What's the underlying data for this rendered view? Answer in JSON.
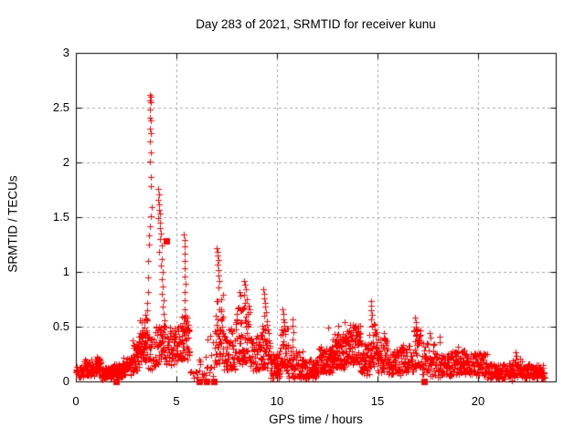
{
  "window": {
    "background": "#ffffff"
  },
  "chart_data": {
    "type": "scatter",
    "title": "Day 283 of 2021, SRMTID for receiver kunu",
    "xlabel": "GPS time / hours",
    "ylabel": "SRMTID / TECUs",
    "xlim": [
      0,
      23.86
    ],
    "ylim": [
      0,
      3
    ],
    "x_ticks": [
      0,
      5,
      10,
      15,
      20
    ],
    "x_tick_labels": [
      "0",
      "5",
      "10",
      "15",
      "20"
    ],
    "y_ticks": [
      0,
      0.5,
      1,
      1.5,
      2,
      2.5,
      3
    ],
    "y_tick_labels": [
      "0",
      "0.5",
      "1",
      "1.5",
      "2",
      "2.5",
      "3"
    ],
    "grid": true,
    "grid_style": "dashed",
    "legend": null,
    "colors": {
      "marker": "#ff0000",
      "grid": "#a8a8a8",
      "axis": "#000000",
      "text": "#000000"
    },
    "series": [
      {
        "name": "plus_markers",
        "marker": "plus",
        "color": "#ff0000",
        "points": [
          [
            3.68,
            2.62
          ],
          [
            3.71,
            2.6
          ],
          [
            3.69,
            2.57
          ],
          [
            3.72,
            2.55
          ],
          [
            3.7,
            2.48
          ],
          [
            3.69,
            2.41
          ],
          [
            3.72,
            2.38
          ],
          [
            3.7,
            2.31
          ],
          [
            3.72,
            2.27
          ],
          [
            3.69,
            2.19
          ],
          [
            3.71,
            2.09
          ],
          [
            3.7,
            2.01
          ],
          [
            3.73,
            1.87
          ],
          [
            3.71,
            1.78
          ],
          [
            3.75,
            1.59
          ],
          [
            3.73,
            1.51
          ],
          [
            3.67,
            1.42
          ],
          [
            3.65,
            1.33
          ],
          [
            3.63,
            1.25
          ],
          [
            3.61,
            1.1
          ],
          [
            3.59,
            0.95
          ],
          [
            3.57,
            0.82
          ],
          [
            3.55,
            0.72
          ],
          [
            3.53,
            0.65
          ],
          [
            4.08,
            1.76
          ],
          [
            4.12,
            1.71
          ],
          [
            4.1,
            1.66
          ],
          [
            4.15,
            1.62
          ],
          [
            4.13,
            1.57
          ],
          [
            4.18,
            1.53
          ],
          [
            4.11,
            1.49
          ],
          [
            4.2,
            1.45
          ],
          [
            4.16,
            1.4
          ],
          [
            4.22,
            1.35
          ],
          [
            4.19,
            1.3
          ],
          [
            4.25,
            1.24
          ],
          [
            4.15,
            1.18
          ],
          [
            4.28,
            1.12
          ],
          [
            4.22,
            1.06
          ],
          [
            4.3,
            1.0
          ],
          [
            4.26,
            0.93
          ],
          [
            4.33,
            0.87
          ],
          [
            4.29,
            0.8
          ],
          [
            4.36,
            0.74
          ],
          [
            4.32,
            0.68
          ],
          [
            4.38,
            0.62
          ],
          [
            4.4,
            0.56
          ],
          [
            5.38,
            1.34
          ],
          [
            5.41,
            1.29
          ],
          [
            5.39,
            1.23
          ],
          [
            5.43,
            1.17
          ],
          [
            5.4,
            1.1
          ],
          [
            5.42,
            1.03
          ],
          [
            5.39,
            0.96
          ],
          [
            5.44,
            0.89
          ],
          [
            5.41,
            0.82
          ],
          [
            5.43,
            0.74
          ],
          [
            5.4,
            0.66
          ],
          [
            6.12,
            0.2
          ],
          [
            6.18,
            0.18
          ],
          [
            6.25,
            0.07
          ],
          [
            6.45,
            0.06
          ],
          [
            6.55,
            0.38
          ],
          [
            6.7,
            0.42
          ],
          [
            6.72,
            0.13
          ],
          [
            6.8,
            0.36
          ],
          [
            7.02,
            1.22
          ],
          [
            7.06,
            1.18
          ],
          [
            7.04,
            1.15
          ],
          [
            7.08,
            1.11
          ],
          [
            7.05,
            1.07
          ],
          [
            7.1,
            1.02
          ],
          [
            7.07,
            0.97
          ],
          [
            7.12,
            0.92
          ],
          [
            7.09,
            0.86
          ],
          [
            8.12,
            0.82
          ],
          [
            8.18,
            0.78
          ],
          [
            8.35,
            0.92
          ],
          [
            8.4,
            0.88
          ],
          [
            8.45,
            0.84
          ],
          [
            8.38,
            0.79
          ],
          [
            8.5,
            0.75
          ],
          [
            8.42,
            0.72
          ],
          [
            9.32,
            0.84
          ],
          [
            9.38,
            0.8
          ],
          [
            9.35,
            0.76
          ],
          [
            9.42,
            0.72
          ],
          [
            9.39,
            0.68
          ],
          [
            9.45,
            0.63
          ],
          [
            9.36,
            0.6
          ],
          [
            10.28,
            0.66
          ],
          [
            10.32,
            0.62
          ],
          [
            10.3,
            0.57
          ],
          [
            10.35,
            0.54
          ],
          [
            10.78,
            0.57
          ],
          [
            10.78,
            0.51
          ],
          [
            10.8,
            0.45
          ],
          [
            10.76,
            0.38
          ],
          [
            10.77,
            0.32
          ],
          [
            12.55,
            0.49
          ],
          [
            13.05,
            0.51
          ],
          [
            13.35,
            0.54
          ],
          [
            13.62,
            0.52
          ],
          [
            13.9,
            0.48
          ],
          [
            14.66,
            0.73
          ],
          [
            14.7,
            0.69
          ],
          [
            14.68,
            0.65
          ],
          [
            14.73,
            0.61
          ],
          [
            14.7,
            0.57
          ],
          [
            15.3,
            0.44
          ],
          [
            15.32,
            0.4
          ],
          [
            16.88,
            0.58
          ],
          [
            16.92,
            0.54
          ],
          [
            16.9,
            0.5
          ],
          [
            16.94,
            0.46
          ],
          [
            16.89,
            0.42
          ],
          [
            17.58,
            0.44
          ],
          [
            17.62,
            0.4
          ],
          [
            18.08,
            0.41
          ],
          [
            18.1,
            0.36
          ],
          [
            19.0,
            0.32
          ],
          [
            21.88,
            0.27
          ],
          [
            21.9,
            0.23
          ],
          [
            21.7,
            0.01
          ]
        ],
        "bands_format": [
          "x_start",
          "x_end",
          "n_points",
          "y_min",
          "y_max"
        ],
        "bands": [
          [
            0.0,
            0.35,
            28,
            0.04,
            0.15
          ],
          [
            0.35,
            0.95,
            60,
            0.05,
            0.2
          ],
          [
            0.95,
            1.25,
            32,
            0.07,
            0.23
          ],
          [
            1.25,
            1.8,
            50,
            0.02,
            0.13
          ],
          [
            1.8,
            2.35,
            50,
            0.04,
            0.17
          ],
          [
            2.35,
            2.8,
            45,
            0.06,
            0.22
          ],
          [
            2.8,
            3.15,
            40,
            0.1,
            0.38
          ],
          [
            3.15,
            3.55,
            60,
            0.18,
            0.62
          ],
          [
            3.55,
            3.95,
            30,
            0.1,
            0.4
          ],
          [
            3.95,
            4.45,
            48,
            0.15,
            0.52
          ],
          [
            4.45,
            4.85,
            32,
            0.15,
            0.5
          ],
          [
            4.85,
            5.15,
            28,
            0.18,
            0.5
          ],
          [
            5.15,
            5.65,
            55,
            0.2,
            0.6
          ],
          [
            5.65,
            6.05,
            6,
            0.02,
            0.1
          ],
          [
            6.05,
            6.9,
            14,
            0.04,
            0.25
          ],
          [
            6.9,
            7.35,
            48,
            0.15,
            0.8
          ],
          [
            7.35,
            7.95,
            50,
            0.1,
            0.48
          ],
          [
            7.95,
            8.65,
            75,
            0.15,
            0.7
          ],
          [
            8.65,
            9.2,
            42,
            0.1,
            0.42
          ],
          [
            9.2,
            9.65,
            48,
            0.12,
            0.58
          ],
          [
            9.65,
            10.15,
            55,
            0.03,
            0.26
          ],
          [
            10.15,
            10.55,
            40,
            0.1,
            0.52
          ],
          [
            10.55,
            11.35,
            62,
            0.03,
            0.28
          ],
          [
            11.35,
            12.05,
            60,
            0.03,
            0.2
          ],
          [
            12.05,
            12.75,
            70,
            0.08,
            0.32
          ],
          [
            12.75,
            13.45,
            85,
            0.12,
            0.44
          ],
          [
            13.45,
            14.15,
            85,
            0.16,
            0.52
          ],
          [
            14.15,
            14.6,
            45,
            0.06,
            0.35
          ],
          [
            14.6,
            15.0,
            40,
            0.14,
            0.55
          ],
          [
            15.0,
            15.5,
            45,
            0.08,
            0.4
          ],
          [
            15.5,
            16.15,
            48,
            0.05,
            0.3
          ],
          [
            16.15,
            16.8,
            48,
            0.08,
            0.36
          ],
          [
            16.8,
            17.15,
            30,
            0.12,
            0.5
          ],
          [
            17.15,
            17.9,
            48,
            0.05,
            0.36
          ],
          [
            17.9,
            18.65,
            58,
            0.04,
            0.26
          ],
          [
            18.65,
            19.45,
            70,
            0.06,
            0.3
          ],
          [
            19.45,
            20.45,
            85,
            0.05,
            0.26
          ],
          [
            20.45,
            21.35,
            70,
            0.02,
            0.16
          ],
          [
            21.35,
            22.25,
            70,
            0.04,
            0.21
          ],
          [
            22.25,
            23.3,
            80,
            0.03,
            0.16
          ]
        ]
      },
      {
        "name": "square_markers",
        "marker": "square",
        "color": "#ff0000",
        "points": [
          [
            2.0,
            0.0
          ],
          [
            4.5,
            1.28
          ],
          [
            6.15,
            0.0
          ],
          [
            6.5,
            0.0
          ],
          [
            6.85,
            0.0
          ],
          [
            17.3,
            0.0
          ]
        ]
      }
    ]
  }
}
